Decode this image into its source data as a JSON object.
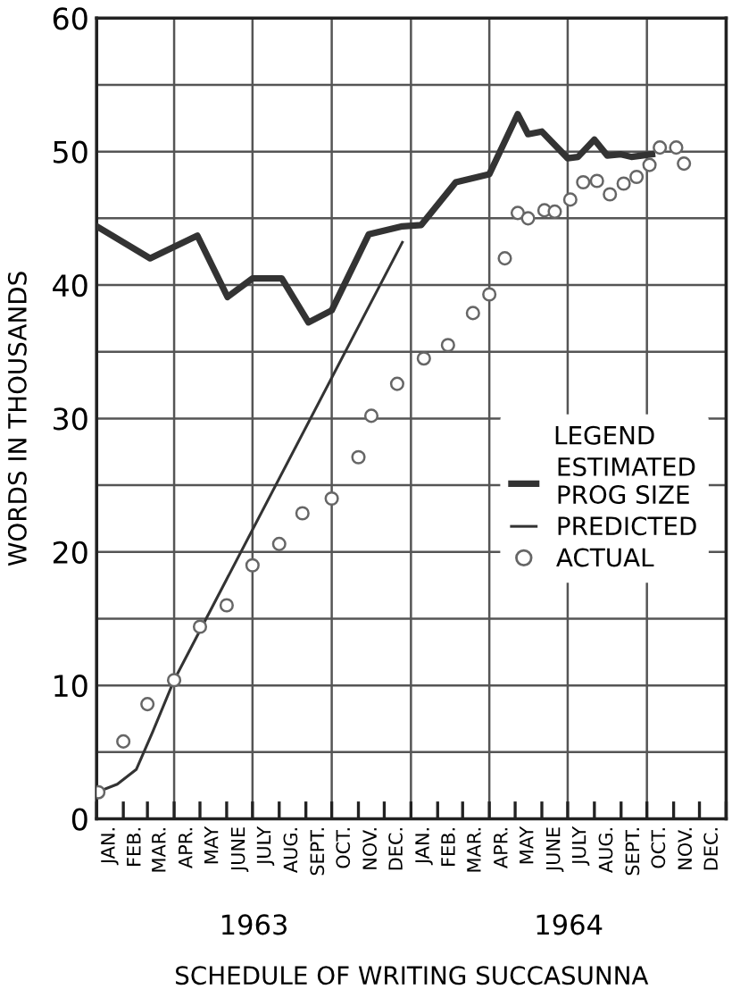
{
  "chart_data": {
    "type": "line",
    "xlabel": "SCHEDULE OF WRITING SUCCASUNNA",
    "ylabel": "WORDS IN THOUSANDS",
    "legend_title": "LEGEND",
    "annotations": [
      "1963",
      "1964"
    ],
    "xlim": [
      "1963-01-01",
      "1965-01-01"
    ],
    "xticks": [
      {
        "value": "1963-01-16",
        "label": "JAN."
      },
      {
        "value": "1963-02-15",
        "label": "FEB."
      },
      {
        "value": "1963-03-16",
        "label": "MAR."
      },
      {
        "value": "1963-04-16",
        "label": "APR."
      },
      {
        "value": "1963-05-16",
        "label": "MAY"
      },
      {
        "value": "1963-06-16",
        "label": "JUNE"
      },
      {
        "value": "1963-07-16",
        "label": "JULY"
      },
      {
        "value": "1963-08-16",
        "label": "AUG."
      },
      {
        "value": "1963-09-16",
        "label": "SEPT."
      },
      {
        "value": "1963-10-16",
        "label": "OCT."
      },
      {
        "value": "1963-11-16",
        "label": "NOV."
      },
      {
        "value": "1963-12-16",
        "label": "DEC."
      },
      {
        "value": "1964-01-16",
        "label": "JAN."
      },
      {
        "value": "1964-02-15",
        "label": "FEB."
      },
      {
        "value": "1964-03-16",
        "label": "MAR."
      },
      {
        "value": "1964-04-16",
        "label": "APR."
      },
      {
        "value": "1964-05-16",
        "label": "MAY"
      },
      {
        "value": "1964-06-16",
        "label": "JUNE"
      },
      {
        "value": "1964-07-16",
        "label": "JULY"
      },
      {
        "value": "1964-08-16",
        "label": "AUG."
      },
      {
        "value": "1964-09-16",
        "label": "SEPT."
      },
      {
        "value": "1964-10-16",
        "label": "OCT."
      },
      {
        "value": "1964-11-16",
        "label": "NOV."
      },
      {
        "value": "1964-12-16",
        "label": "DEC."
      },
      {
        "value": "1963-01-01",
        "label": null
      },
      {
        "value": "1963-02-01",
        "label": null
      },
      {
        "value": "1963-03-01",
        "label": null
      },
      {
        "value": "1963-04-01",
        "label": null
      },
      {
        "value": "1963-05-01",
        "label": null
      },
      {
        "value": "1963-06-01",
        "label": null
      },
      {
        "value": "1963-07-01",
        "label": null
      },
      {
        "value": "1963-08-01",
        "label": null
      },
      {
        "value": "1963-09-01",
        "label": null
      },
      {
        "value": "1963-10-01",
        "label": null
      },
      {
        "value": "1963-11-01",
        "label": null
      },
      {
        "value": "1963-12-01",
        "label": null
      },
      {
        "value": "1964-01-01",
        "label": null
      },
      {
        "value": "1964-02-01",
        "label": null
      },
      {
        "value": "1964-03-01",
        "label": null
      },
      {
        "value": "1964-04-01",
        "label": null
      },
      {
        "value": "1964-05-01",
        "label": null
      },
      {
        "value": "1964-06-01",
        "label": null
      },
      {
        "value": "1964-07-01",
        "label": null
      },
      {
        "value": "1964-08-01",
        "label": null
      },
      {
        "value": "1964-09-01",
        "label": null
      },
      {
        "value": "1964-10-01",
        "label": null
      },
      {
        "value": "1964-11-01",
        "label": null
      },
      {
        "value": "1964-12-01",
        "label": null
      },
      {
        "value": "1965-01-01",
        "label": null
      }
    ],
    "ylim": [
      0,
      60
    ],
    "yticks": [
      0,
      {
        "value": 5,
        "label": null
      },
      10,
      {
        "value": 15,
        "label": null
      },
      20,
      {
        "value": 25,
        "label": null
      },
      30,
      {
        "value": 35,
        "label": null
      },
      40,
      {
        "value": 45,
        "label": null
      },
      50,
      {
        "value": 55,
        "label": null
      },
      60
    ],
    "grid": true,
    "legend": "right",
    "series": [
      {
        "name": "ESTIMATED\nPROG SIZE",
        "color": "#333333",
        "marker": "none",
        "x": [
          "1963-01-01",
          "1963-03-04",
          "1963-04-28",
          "1963-06-02",
          "1963-07-01",
          "1963-08-04",
          "1963-09-04",
          "1963-10-01",
          "1963-11-13",
          "1963-12-22",
          "1964-01-13",
          "1964-02-22",
          "1964-04-01",
          "1964-05-04",
          "1964-05-16",
          "1964-06-01",
          "1964-07-01",
          "1964-07-13",
          "1964-08-01",
          "1964-08-16",
          "1964-09-01",
          "1964-09-13",
          "1964-10-07"
        ],
        "values": [
          44.4,
          42.0,
          43.7,
          39.1,
          40.5,
          40.5,
          37.2,
          38.1,
          43.8,
          44.4,
          44.5,
          47.7,
          48.3,
          52.8,
          51.3,
          51.5,
          49.5,
          49.6,
          50.9,
          49.7,
          49.8,
          49.6,
          49.8
        ]
      },
      {
        "name": "PREDICTED",
        "color": "#333333",
        "marker": "none",
        "x": [
          "1963-01-01",
          "1963-01-25",
          "1963-02-16",
          "1963-03-07",
          "1963-04-01",
          "1963-12-22"
        ],
        "values": [
          2.0,
          2.6,
          3.7,
          6.5,
          10.4,
          43.2
        ]
      },
      {
        "name": "ACTUAL",
        "type": "scatter",
        "color": "#666666",
        "marker": "circle",
        "x": [
          "1963-01-03",
          "1963-02-01",
          "1963-03-01",
          "1963-04-01",
          "1963-05-01",
          "1963-06-01",
          "1963-07-01",
          "1963-08-01",
          "1963-08-28",
          "1963-10-01",
          "1963-11-01",
          "1963-11-16",
          "1963-12-16",
          "1964-01-16",
          "1964-02-13",
          "1964-03-13",
          "1964-04-01",
          "1964-04-19",
          "1964-05-04",
          "1964-05-16",
          "1964-06-04",
          "1964-06-16",
          "1964-07-04",
          "1964-07-19",
          "1964-08-04",
          "1964-08-19",
          "1964-09-04",
          "1964-09-19",
          "1964-10-04",
          "1964-10-16",
          "1964-11-04",
          "1964-11-13"
        ],
        "values": [
          2.0,
          5.8,
          8.6,
          10.4,
          14.4,
          16.0,
          19.0,
          20.6,
          22.9,
          24.0,
          27.1,
          30.2,
          32.6,
          34.5,
          35.5,
          37.9,
          39.3,
          42.0,
          45.4,
          45.0,
          45.6,
          45.5,
          46.4,
          47.7,
          47.8,
          46.8,
          47.6,
          48.1,
          49.0,
          50.3,
          50.3,
          49.1
        ]
      }
    ]
  }
}
